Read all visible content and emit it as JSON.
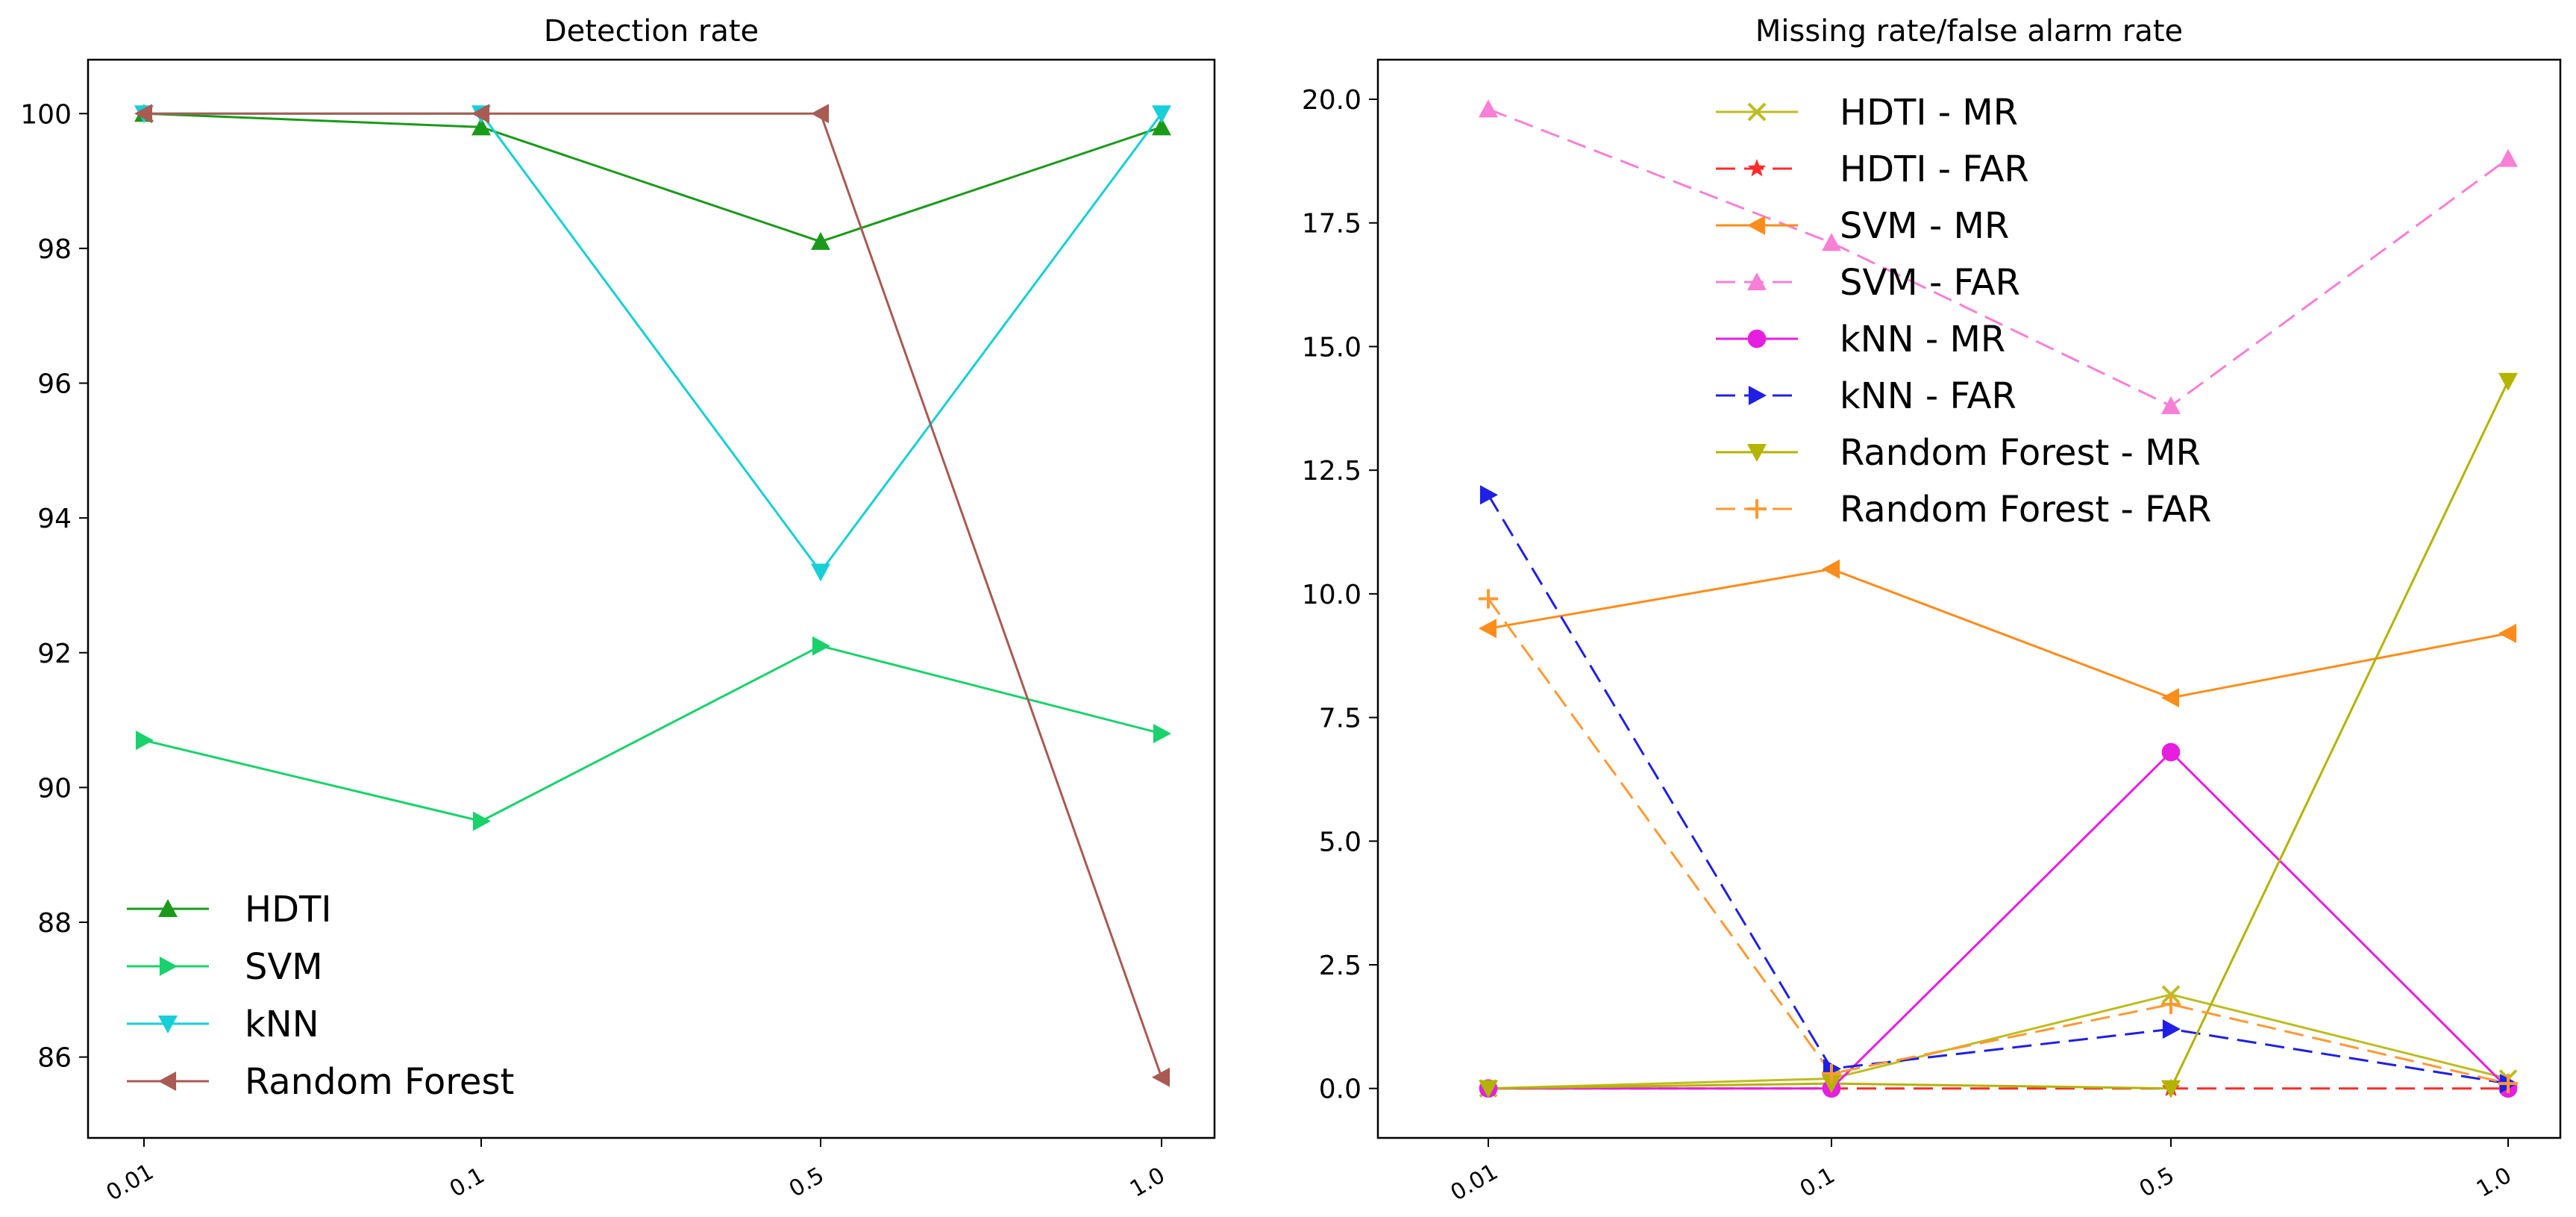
{
  "chart_data": [
    {
      "type": "line",
      "title": "Detection rate",
      "xlabel": "",
      "ylabel": "",
      "categories": [
        "0.01",
        "0.1",
        "0.5",
        "1.0"
      ],
      "ylim": [
        84.8,
        100.8
      ],
      "yticks": [
        86,
        88,
        90,
        92,
        94,
        96,
        98,
        100
      ],
      "ytick_labels": [
        "86",
        "88",
        "90",
        "92",
        "94",
        "96",
        "98",
        "100"
      ],
      "legend_position": "lower-left",
      "series": [
        {
          "name": "HDTI",
          "values": [
            100.0,
            99.8,
            98.1,
            99.8
          ],
          "color": "#1a9a1a",
          "marker": "triangle-up",
          "dash": "solid"
        },
        {
          "name": "SVM",
          "values": [
            90.7,
            89.5,
            92.1,
            90.8
          ],
          "color": "#19d26b",
          "marker": "triangle-right",
          "dash": "solid"
        },
        {
          "name": "kNN",
          "values": [
            100.0,
            100.0,
            93.2,
            100.0
          ],
          "color": "#17cfd8",
          "marker": "triangle-down",
          "dash": "solid"
        },
        {
          "name": "Random Forest",
          "values": [
            100.0,
            100.0,
            100.0,
            85.7
          ],
          "color": "#a95a52",
          "marker": "triangle-left",
          "dash": "solid"
        }
      ]
    },
    {
      "type": "line",
      "title": "Missing rate/false alarm rate",
      "xlabel": "",
      "ylabel": "",
      "categories": [
        "0.01",
        "0.1",
        "0.5",
        "1.0"
      ],
      "ylim": [
        -1.0,
        20.8
      ],
      "yticks": [
        0,
        2.5,
        5,
        7.5,
        10,
        12.5,
        15,
        17.5,
        20
      ],
      "ytick_labels": [
        "0.0",
        "2.5",
        "5.0",
        "7.5",
        "10.0",
        "12.5",
        "15.0",
        "17.5",
        "20.0"
      ],
      "legend_position": "upper-center",
      "series": [
        {
          "name": "HDTI - MR",
          "values": [
            0.0,
            0.2,
            1.9,
            0.2
          ],
          "color": "#bcbd22",
          "marker": "x",
          "dash": "solid"
        },
        {
          "name": "HDTI - FAR",
          "values": [
            0.0,
            0.0,
            0.0,
            0.0
          ],
          "color": "#ff2b2b",
          "marker": "star",
          "dash": "dashed"
        },
        {
          "name": "SVM - MR",
          "values": [
            9.3,
            10.5,
            7.9,
            9.2
          ],
          "color": "#ff8c1a",
          "marker": "triangle-left",
          "dash": "solid"
        },
        {
          "name": "SVM - FAR",
          "values": [
            19.8,
            17.1,
            13.8,
            18.8
          ],
          "color": "#f77fd6",
          "marker": "triangle-up",
          "dash": "dashed"
        },
        {
          "name": "kNN - MR",
          "values": [
            0.0,
            0.0,
            6.8,
            0.0
          ],
          "color": "#e61ee0",
          "marker": "circle",
          "dash": "solid"
        },
        {
          "name": "kNN - FAR",
          "values": [
            12.0,
            0.4,
            1.2,
            0.1
          ],
          "color": "#1f1fe6",
          "marker": "triangle-right",
          "dash": "dashed"
        },
        {
          "name": "Random Forest - MR",
          "values": [
            0.0,
            0.1,
            0.0,
            14.3
          ],
          "color": "#b3b300",
          "marker": "triangle-down",
          "dash": "solid"
        },
        {
          "name": "Random Forest - FAR",
          "values": [
            9.9,
            0.3,
            1.7,
            0.1
          ],
          "color": "#ff9933",
          "marker": "plus",
          "dash": "dashed"
        }
      ]
    }
  ]
}
